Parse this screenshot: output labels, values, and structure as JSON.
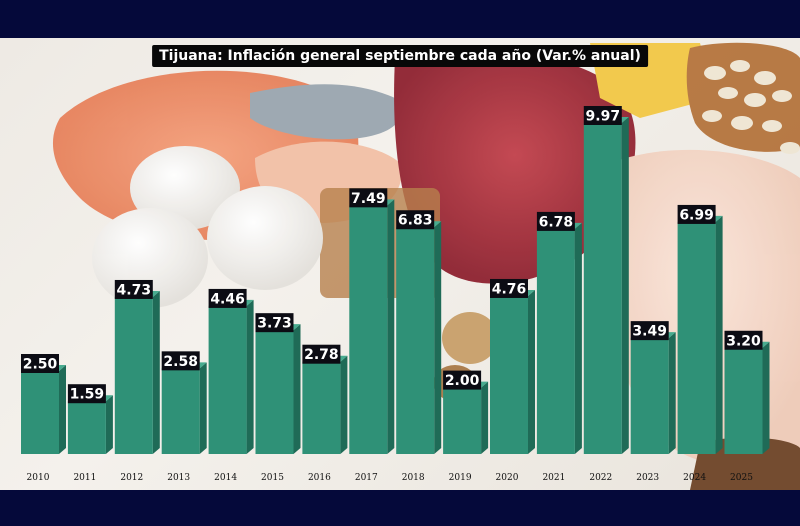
{
  "chart_data": {
    "type": "bar",
    "title": "Tijuana: Inflación general septiembre cada año (Var.% anual)",
    "categories": [
      "2010",
      "2011",
      "2012",
      "2013",
      "2014",
      "2015",
      "2016",
      "2017",
      "2018",
      "2019",
      "2020",
      "2021",
      "2022",
      "2023",
      "2024",
      "2025"
    ],
    "series": [
      {
        "values": [
          2.5,
          1.59,
          4.73,
          2.58,
          4.46,
          3.73,
          2.78,
          7.49,
          6.83,
          2.0,
          4.76,
          6.78,
          9.97,
          3.49,
          6.99,
          3.2
        ]
      }
    ],
    "value_labels": [
      "2.50",
      "1.59",
      "4.73",
      "2.58",
      "4.46",
      "3.73",
      "2.78",
      "7.49",
      "6.83",
      "2.00",
      "4.76",
      "6.78",
      "9.97",
      "3.49",
      "6.99",
      "3.20"
    ],
    "xlabel": "",
    "ylabel": "",
    "ylim": [
      0,
      10
    ],
    "grid": false,
    "legend": "none",
    "colors": {
      "bar_front": "#2f9177",
      "bar_side": "#1f6b57",
      "bar_top": "#48ab8f",
      "label_bg": "#0c0c14",
      "title_bg": "#080808",
      "frame_bg": "#05093a"
    }
  }
}
